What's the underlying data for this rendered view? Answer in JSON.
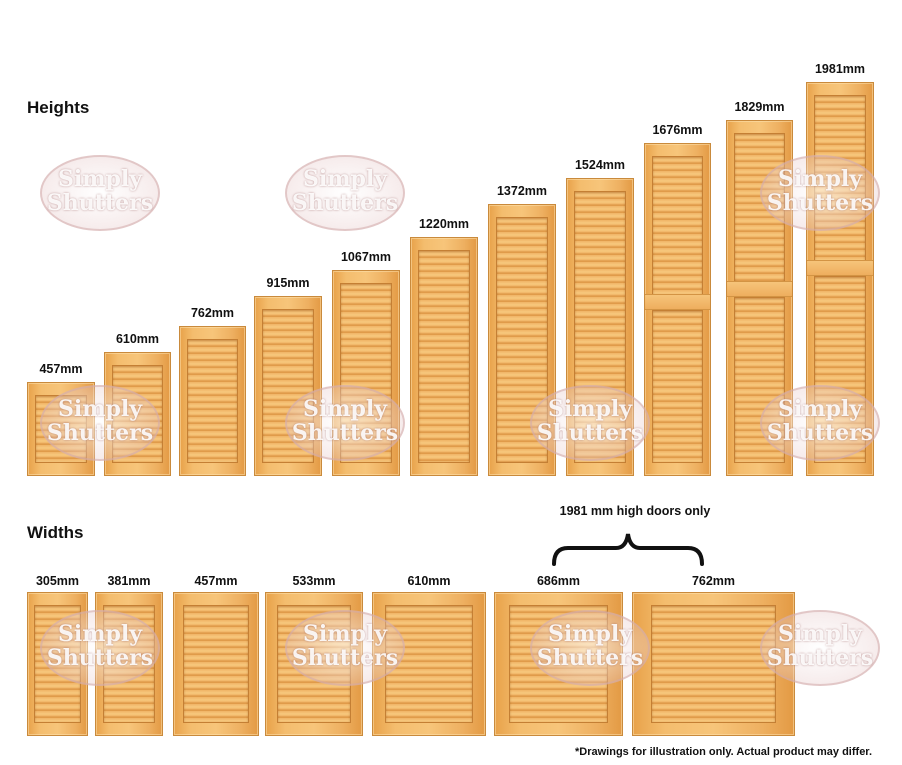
{
  "headings": {
    "heights": "Heights",
    "widths": "Widths"
  },
  "watermark": {
    "line1": "Simply",
    "line2": "Shutters"
  },
  "heights": [
    {
      "label": "457mm"
    },
    {
      "label": "610mm"
    },
    {
      "label": "762mm"
    },
    {
      "label": "915mm"
    },
    {
      "label": "1067mm"
    },
    {
      "label": "1220mm"
    },
    {
      "label": "1372mm"
    },
    {
      "label": "1524mm"
    },
    {
      "label": "1676mm"
    },
    {
      "label": "1829mm"
    },
    {
      "label": "1981mm"
    }
  ],
  "widths": [
    {
      "label": "305mm"
    },
    {
      "label": "381mm"
    },
    {
      "label": "457mm"
    },
    {
      "label": "533mm"
    },
    {
      "label": "610mm"
    },
    {
      "label": "686mm"
    },
    {
      "label": "762mm"
    }
  ],
  "brace_note": "1981 mm high doors only",
  "footnote": "*Drawings for illustration only. Actual product may differ.",
  "colors": {
    "wood_light": "#f7c57a",
    "wood_dark": "#e39a44",
    "watermark": "#d8aaaa"
  }
}
